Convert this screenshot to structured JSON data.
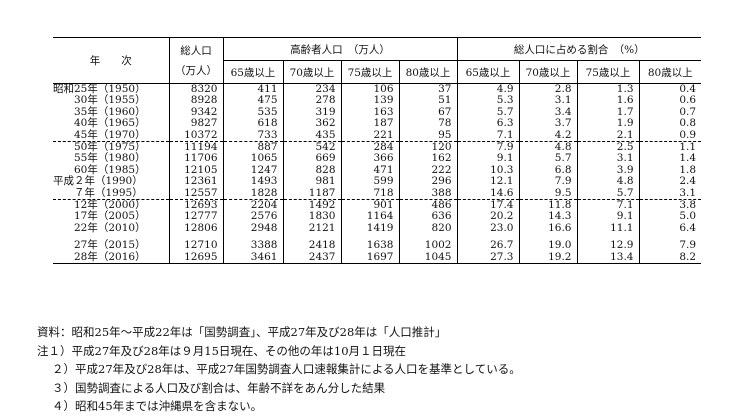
{
  "table": {
    "header": {
      "year": "年　　次",
      "total_line1": "総人口",
      "total_line2": "（万人）",
      "elderly": "高齢者人口　（万人）",
      "ratio": "総人口に占める割合　（%）",
      "sub": [
        "65歳以上",
        "70歳以上",
        "75歳以上",
        "80歳以上",
        "65歳以上",
        "70歳以上",
        "75歳以上",
        "80歳以上"
      ]
    },
    "rows": [
      {
        "year": "昭和25年（1950）",
        "total": "8320",
        "e65": "411",
        "e70": "234",
        "e75": "106",
        "e80": "37",
        "r65": "4.9",
        "r70": "2.8",
        "r75": "1.3",
        "r80": "0.4"
      },
      {
        "year": "　　30年（1955）",
        "total": "8928",
        "e65": "475",
        "e70": "278",
        "e75": "139",
        "e80": "51",
        "r65": "5.3",
        "r70": "3.1",
        "r75": "1.6",
        "r80": "0.6"
      },
      {
        "year": "　　35年（1960）",
        "total": "9342",
        "e65": "535",
        "e70": "319",
        "e75": "163",
        "e80": "67",
        "r65": "5.7",
        "r70": "3.4",
        "r75": "1.7",
        "r80": "0.7"
      },
      {
        "year": "　　40年（1965）",
        "total": "9827",
        "e65": "618",
        "e70": "362",
        "e75": "187",
        "e80": "78",
        "r65": "6.3",
        "r70": "3.7",
        "r75": "1.9",
        "r80": "0.8"
      },
      {
        "year": "　　45年（1970）",
        "total": "10372",
        "e65": "733",
        "e70": "435",
        "e75": "221",
        "e80": "95",
        "r65": "7.1",
        "r70": "4.2",
        "r75": "2.1",
        "r80": "0.9"
      },
      {
        "year": "　　50年（1975）",
        "total": "11194",
        "e65": "887",
        "e70": "542",
        "e75": "284",
        "e80": "120",
        "r65": "7.9",
        "r70": "4.8",
        "r75": "2.5",
        "r80": "1.1"
      },
      {
        "year": "　　55年（1980）",
        "total": "11706",
        "e65": "1065",
        "e70": "669",
        "e75": "366",
        "e80": "162",
        "r65": "9.1",
        "r70": "5.7",
        "r75": "3.1",
        "r80": "1.4"
      },
      {
        "year": "　　60年（1985）",
        "total": "12105",
        "e65": "1247",
        "e70": "828",
        "e75": "471",
        "e80": "222",
        "r65": "10.3",
        "r70": "6.8",
        "r75": "3.9",
        "r80": "1.8"
      },
      {
        "year": "平成２年（1990）",
        "total": "12361",
        "e65": "1493",
        "e70": "981",
        "e75": "599",
        "e80": "296",
        "r65": "12.1",
        "r70": "7.9",
        "r75": "4.8",
        "r80": "2.4"
      },
      {
        "year": "　　７年（1995）",
        "total": "12557",
        "e65": "1828",
        "e70": "1187",
        "e75": "718",
        "e80": "388",
        "r65": "14.6",
        "r70": "9.5",
        "r75": "5.7",
        "r80": "3.1"
      },
      {
        "year": "　　12年（2000）",
        "total": "12693",
        "e65": "2204",
        "e70": "1492",
        "e75": "901",
        "e80": "486",
        "r65": "17.4",
        "r70": "11.8",
        "r75": "7.1",
        "r80": "3.8"
      },
      {
        "year": "　　17年（2005）",
        "total": "12777",
        "e65": "2576",
        "e70": "1830",
        "e75": "1164",
        "e80": "636",
        "r65": "20.2",
        "r70": "14.3",
        "r75": "9.1",
        "r80": "5.0"
      },
      {
        "year": "　　22年（2010）",
        "total": "12806",
        "e65": "2948",
        "e70": "2121",
        "e75": "1419",
        "e80": "820",
        "r65": "23.0",
        "r70": "16.6",
        "r75": "11.1",
        "r80": "6.4"
      },
      {
        "year": "　　27年（2015）",
        "total": "12710",
        "e65": "3388",
        "e70": "2418",
        "e75": "1638",
        "e80": "1002",
        "r65": "26.7",
        "r70": "19.0",
        "r75": "12.9",
        "r80": "7.9"
      },
      {
        "year": "　　28年（2016）",
        "total": "12695",
        "e65": "3461",
        "e70": "2437",
        "e75": "1697",
        "e80": "1045",
        "r65": "27.3",
        "r70": "19.2",
        "r75": "13.4",
        "r80": "8.2"
      }
    ]
  },
  "notes": [
    {
      "prefix": "",
      "text": "資料：昭和25年～平成22年は「国勢調査」、平成27年及び28年は「人口推計」"
    },
    {
      "prefix": "",
      "text": "注１）平成27年及び28年は９月15日現在、その他の年は10月１日現在"
    },
    {
      "prefix": "２）",
      "text": "平成27年及び28年は、平成27年国勢調査人口速報集計による人口を基準としている。"
    },
    {
      "prefix": "３）",
      "text": "国勢調査による人口及び割合は、年齢不詳をあん分した結果"
    },
    {
      "prefix": "４）",
      "text": "昭和45年までは沖縄県を含まない。"
    }
  ]
}
